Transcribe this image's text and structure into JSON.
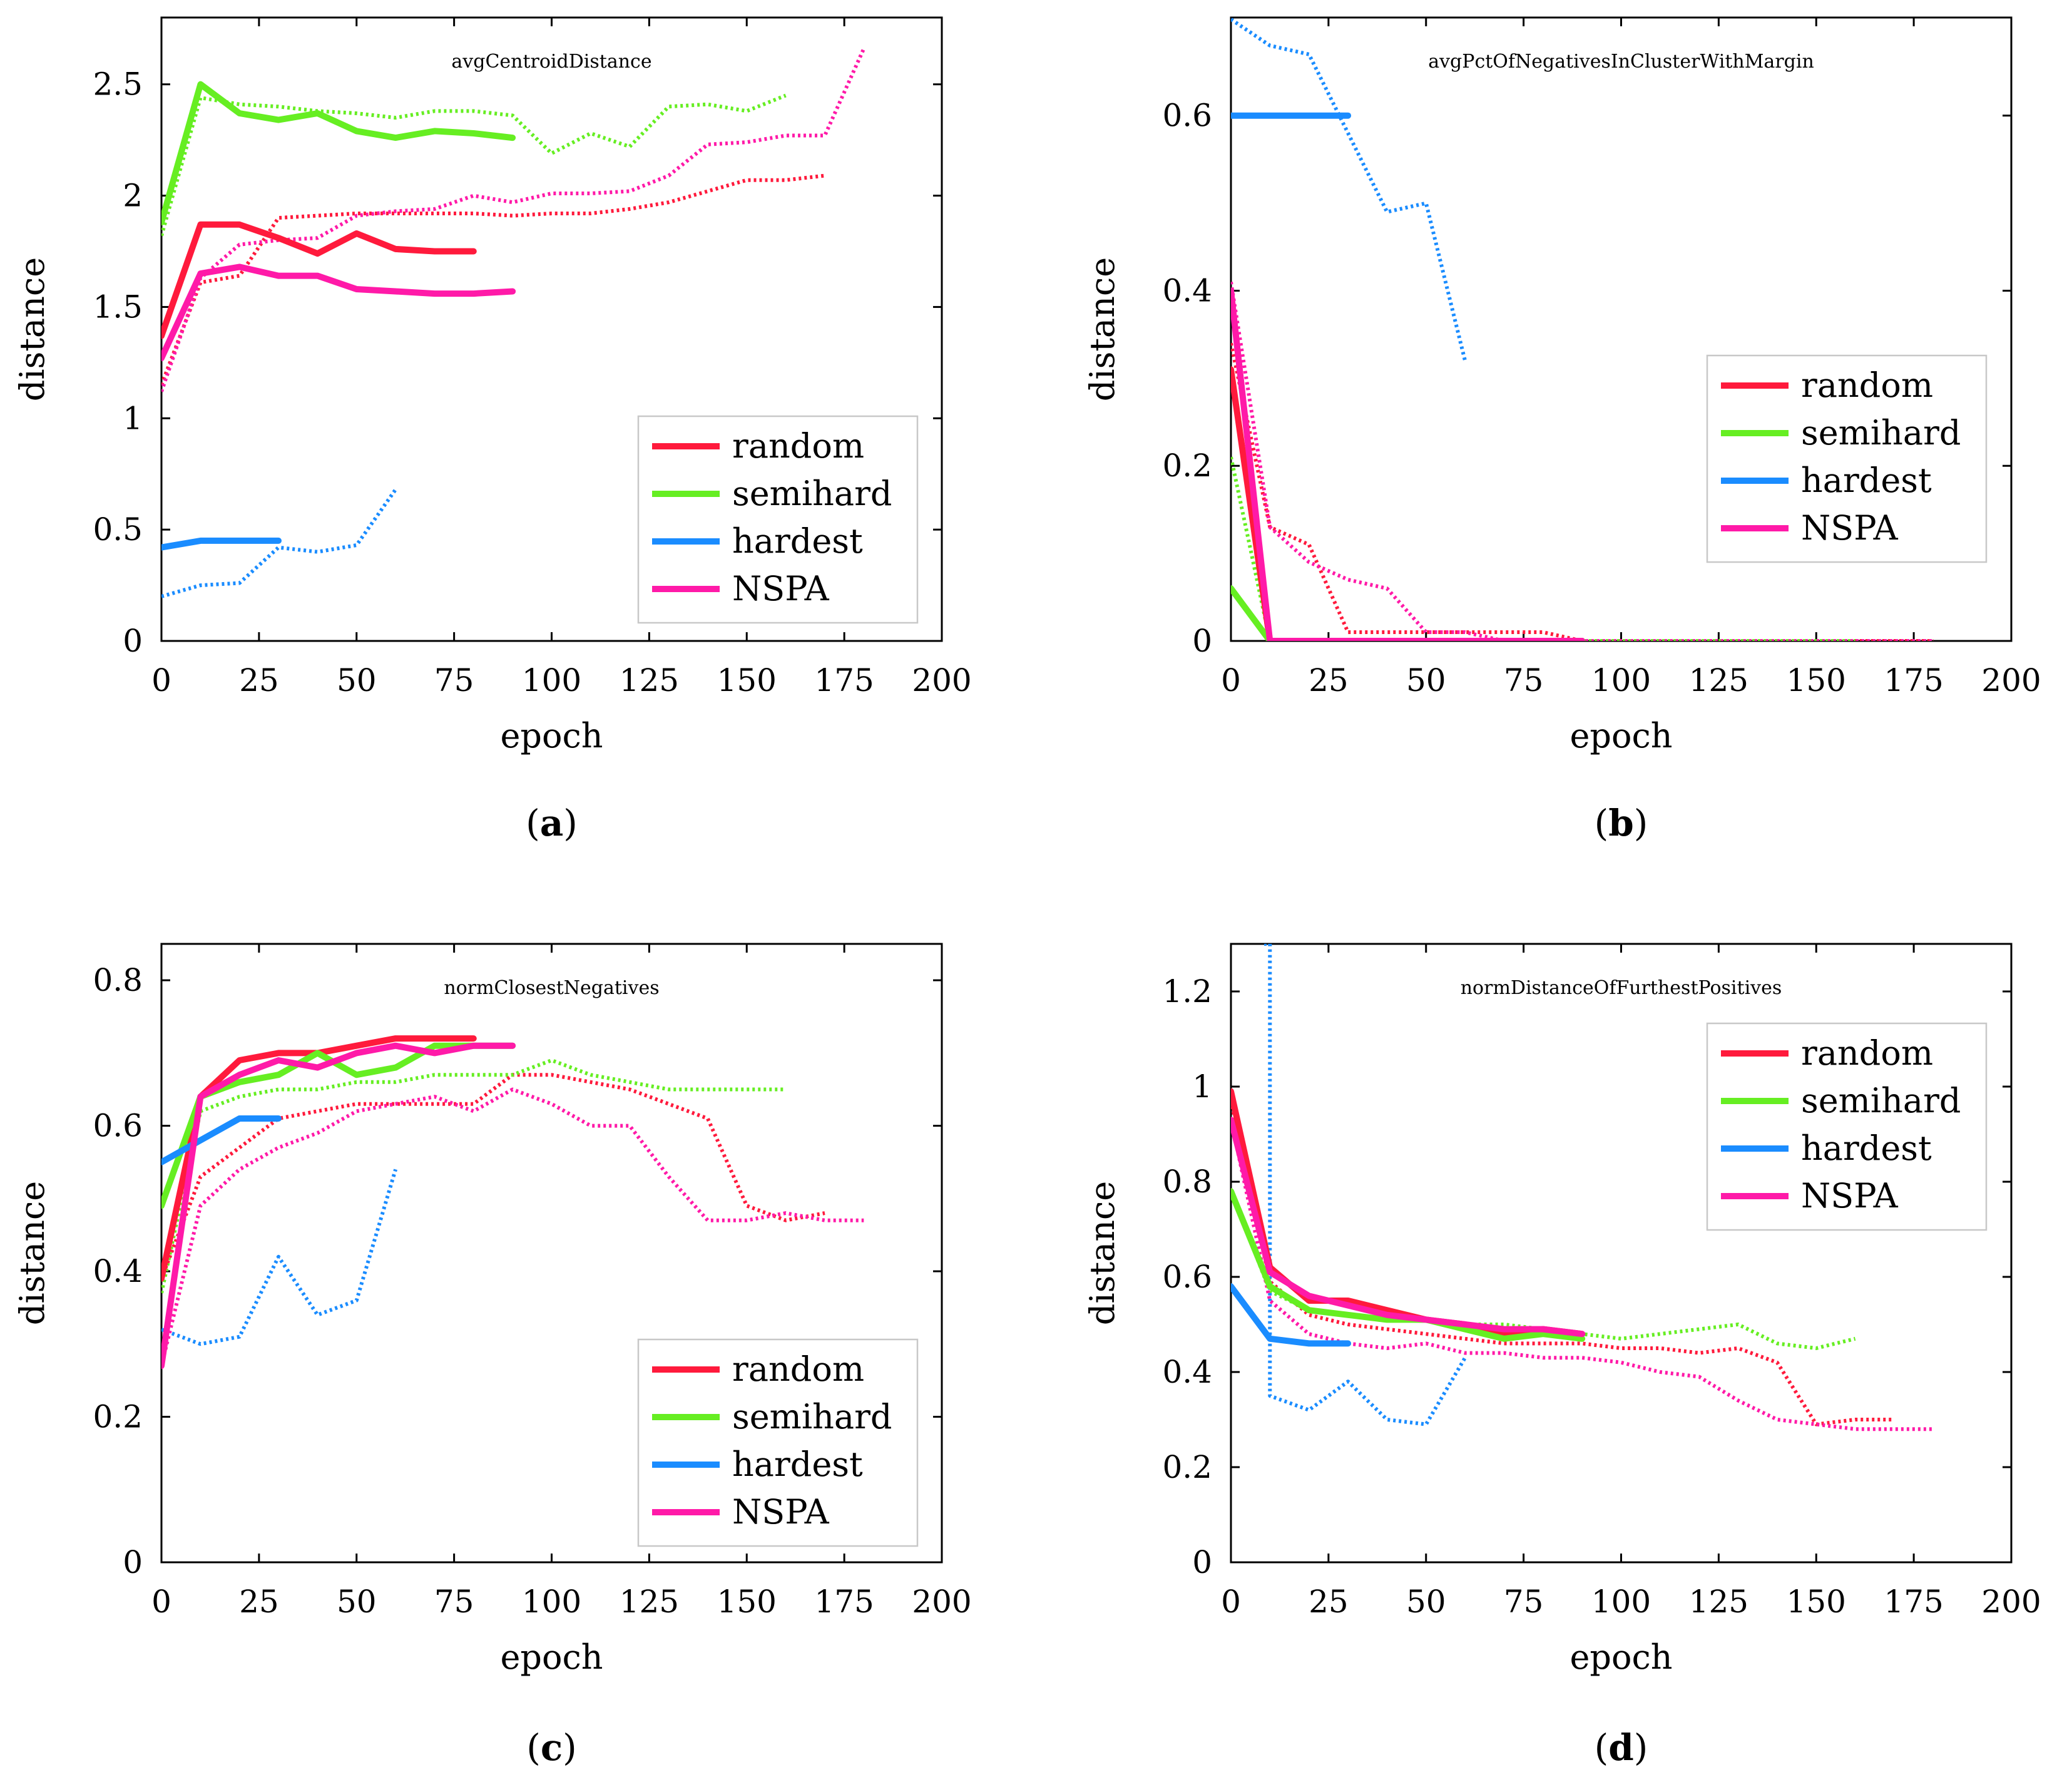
{
  "colors": {
    "random": "#ff1a3c",
    "semihard": "#66ee22",
    "hardest": "#1a8cff",
    "NSPA": "#ff1aa8"
  },
  "legend": [
    "random",
    "semihard",
    "hardest",
    "NSPA"
  ],
  "chart_data": [
    {
      "type": "line",
      "panel": "a",
      "caption": "(a)",
      "caption_letter": "a",
      "title": "avgCentroidDistance",
      "xlabel": "epoch",
      "ylabel": "distance",
      "xlim": [
        0,
        200
      ],
      "ylim": [
        0,
        2.8
      ],
      "xticks": [
        0,
        25,
        50,
        75,
        100,
        125,
        150,
        175,
        200
      ],
      "yticks": [
        0,
        0.5,
        1,
        1.5,
        2,
        2.5
      ],
      "ytick_labels": [
        "0",
        "0.5",
        "1",
        "1.5",
        "2",
        "2.5"
      ],
      "legend_position": "bottom-right",
      "series": [
        {
          "name": "random",
          "style": "solid",
          "x": [
            0,
            10,
            20,
            30,
            40,
            50,
            60,
            70,
            80
          ],
          "y": [
            1.37,
            1.87,
            1.87,
            1.81,
            1.74,
            1.83,
            1.76,
            1.75,
            1.75
          ]
        },
        {
          "name": "semihard",
          "style": "solid",
          "x": [
            0,
            10,
            20,
            30,
            40,
            50,
            60,
            70,
            80,
            90
          ],
          "y": [
            1.88,
            2.5,
            2.37,
            2.34,
            2.37,
            2.29,
            2.26,
            2.29,
            2.28,
            2.26
          ]
        },
        {
          "name": "hardest",
          "style": "solid",
          "x": [
            0,
            10,
            20,
            30
          ],
          "y": [
            0.42,
            0.45,
            0.45,
            0.45
          ]
        },
        {
          "name": "NSPA",
          "style": "solid",
          "x": [
            0,
            10,
            20,
            30,
            40,
            50,
            60,
            70,
            80,
            90
          ],
          "y": [
            1.27,
            1.65,
            1.68,
            1.64,
            1.64,
            1.58,
            1.57,
            1.56,
            1.56,
            1.57
          ]
        },
        {
          "name": "random",
          "style": "dotted",
          "x": [
            0,
            10,
            20,
            30,
            40,
            50,
            60,
            70,
            80,
            90,
            100,
            110,
            120,
            130,
            140,
            150,
            160,
            170
          ],
          "y": [
            1.15,
            1.61,
            1.64,
            1.9,
            1.91,
            1.92,
            1.92,
            1.92,
            1.92,
            1.91,
            1.92,
            1.92,
            1.94,
            1.97,
            2.02,
            2.07,
            2.07,
            2.09
          ]
        },
        {
          "name": "semihard",
          "style": "dotted",
          "x": [
            0,
            10,
            20,
            30,
            40,
            50,
            60,
            70,
            80,
            90,
            100,
            110,
            120,
            130,
            140,
            150,
            160
          ],
          "y": [
            1.82,
            2.44,
            2.41,
            2.4,
            2.38,
            2.37,
            2.35,
            2.38,
            2.38,
            2.36,
            2.19,
            2.28,
            2.22,
            2.4,
            2.41,
            2.38,
            2.45
          ]
        },
        {
          "name": "hardest",
          "style": "dotted",
          "x": [
            0,
            10,
            20,
            30,
            40,
            50,
            60
          ],
          "y": [
            0.2,
            0.25,
            0.26,
            0.42,
            0.4,
            0.43,
            0.68
          ]
        },
        {
          "name": "NSPA",
          "style": "dotted",
          "x": [
            0,
            10,
            20,
            30,
            40,
            50,
            60,
            70,
            80,
            90,
            100,
            110,
            120,
            130,
            140,
            150,
            160,
            170,
            180
          ],
          "y": [
            1.12,
            1.63,
            1.78,
            1.8,
            1.81,
            1.91,
            1.93,
            1.94,
            2.0,
            1.97,
            2.01,
            2.01,
            2.02,
            2.09,
            2.23,
            2.24,
            2.27,
            2.27,
            2.66
          ]
        }
      ]
    },
    {
      "type": "line",
      "panel": "b",
      "caption": "(b)",
      "caption_letter": "b",
      "title": "avgPctOfNegativesInClusterWithMargin",
      "xlabel": "epoch",
      "ylabel": "distance",
      "xlim": [
        0,
        200
      ],
      "ylim": [
        0,
        0.712
      ],
      "xticks": [
        0,
        25,
        50,
        75,
        100,
        125,
        150,
        175,
        200
      ],
      "yticks": [
        0,
        0.2,
        0.4,
        0.6
      ],
      "ytick_labels": [
        "0",
        "0.2",
        "0.4",
        "0.6"
      ],
      "legend_position": "top-right",
      "series": [
        {
          "name": "random",
          "style": "solid",
          "x": [
            0,
            10,
            20,
            30,
            40,
            50,
            60,
            70,
            80,
            90
          ],
          "y": [
            0.31,
            0,
            0,
            0,
            0,
            0,
            0,
            0,
            0,
            0
          ]
        },
        {
          "name": "semihard",
          "style": "solid",
          "x": [
            0,
            10,
            20,
            30,
            40,
            50,
            60,
            70,
            80,
            90
          ],
          "y": [
            0.06,
            0,
            0,
            0,
            0,
            0,
            0,
            0,
            0,
            0
          ]
        },
        {
          "name": "hardest",
          "style": "solid",
          "x": [
            0,
            10,
            20,
            30
          ],
          "y": [
            0.6,
            0.6,
            0.6,
            0.6
          ]
        },
        {
          "name": "NSPA",
          "style": "solid",
          "x": [
            0,
            10,
            20,
            30,
            40,
            50,
            60,
            70,
            80,
            90
          ],
          "y": [
            0.4,
            0,
            0,
            0,
            0,
            0,
            0,
            0,
            0,
            0
          ]
        },
        {
          "name": "random",
          "style": "dotted",
          "x": [
            0,
            10,
            20,
            30,
            40,
            50,
            60,
            70,
            80,
            90,
            100,
            120,
            140,
            160,
            180
          ],
          "y": [
            0.34,
            0.13,
            0.11,
            0.01,
            0.01,
            0.01,
            0.01,
            0.01,
            0.01,
            0,
            0,
            0,
            0,
            0,
            0
          ]
        },
        {
          "name": "semihard",
          "style": "dotted",
          "x": [
            0,
            10,
            20,
            40,
            60,
            80,
            100,
            120,
            140,
            160
          ],
          "y": [
            0.21,
            0,
            0,
            0,
            0,
            0,
            0,
            0,
            0,
            0
          ]
        },
        {
          "name": "hardest",
          "style": "dotted",
          "x": [
            0,
            10,
            20,
            30,
            40,
            50,
            60
          ],
          "y": [
            0.71,
            0.68,
            0.67,
            0.58,
            0.49,
            0.5,
            0.32
          ]
        },
        {
          "name": "NSPA",
          "style": "dotted",
          "x": [
            0,
            10,
            20,
            30,
            40,
            50,
            60,
            70,
            80,
            90,
            100,
            120,
            140,
            160,
            180
          ],
          "y": [
            0.41,
            0.13,
            0.09,
            0.07,
            0.06,
            0.01,
            0.01,
            0,
            0,
            0,
            0,
            0,
            0,
            0,
            0
          ]
        }
      ]
    },
    {
      "type": "line",
      "panel": "c",
      "caption": "(c)",
      "caption_letter": "c",
      "title": "normClosestNegatives",
      "xlabel": "epoch",
      "ylabel": "distance",
      "xlim": [
        0,
        200
      ],
      "ylim": [
        0,
        0.85
      ],
      "xticks": [
        0,
        25,
        50,
        75,
        100,
        125,
        150,
        175,
        200
      ],
      "yticks": [
        0,
        0.2,
        0.4,
        0.6,
        0.8
      ],
      "ytick_labels": [
        "0",
        "0.2",
        "0.4",
        "0.6",
        "0.8"
      ],
      "legend_position": "bottom-right",
      "series": [
        {
          "name": "random",
          "style": "solid",
          "x": [
            0,
            10,
            20,
            30,
            40,
            50,
            60,
            70,
            80
          ],
          "y": [
            0.39,
            0.64,
            0.69,
            0.7,
            0.7,
            0.71,
            0.72,
            0.72,
            0.72
          ]
        },
        {
          "name": "semihard",
          "style": "solid",
          "x": [
            0,
            10,
            20,
            30,
            40,
            50,
            60,
            70,
            80,
            90
          ],
          "y": [
            0.49,
            0.64,
            0.66,
            0.67,
            0.7,
            0.67,
            0.68,
            0.71,
            0.71,
            0.71
          ]
        },
        {
          "name": "hardest",
          "style": "solid",
          "x": [
            0,
            10,
            20,
            30
          ],
          "y": [
            0.55,
            0.58,
            0.61,
            0.61
          ]
        },
        {
          "name": "NSPA",
          "style": "solid",
          "x": [
            0,
            10,
            20,
            30,
            40,
            50,
            60,
            70,
            80,
            90
          ],
          "y": [
            0.27,
            0.64,
            0.67,
            0.69,
            0.68,
            0.7,
            0.71,
            0.7,
            0.71,
            0.71
          ]
        },
        {
          "name": "random",
          "style": "dotted",
          "x": [
            0,
            10,
            20,
            30,
            40,
            50,
            60,
            70,
            80,
            90,
            100,
            110,
            120,
            130,
            140,
            150,
            160,
            170
          ],
          "y": [
            0.39,
            0.53,
            0.57,
            0.61,
            0.62,
            0.63,
            0.63,
            0.63,
            0.63,
            0.67,
            0.67,
            0.66,
            0.65,
            0.63,
            0.61,
            0.49,
            0.47,
            0.48
          ]
        },
        {
          "name": "semihard",
          "style": "dotted",
          "x": [
            0,
            10,
            20,
            30,
            40,
            50,
            60,
            70,
            80,
            90,
            100,
            110,
            120,
            130,
            140,
            150,
            160
          ],
          "y": [
            0.37,
            0.62,
            0.64,
            0.65,
            0.65,
            0.66,
            0.66,
            0.67,
            0.67,
            0.67,
            0.69,
            0.67,
            0.66,
            0.65,
            0.65,
            0.65,
            0.65
          ]
        },
        {
          "name": "hardest",
          "style": "dotted",
          "x": [
            0,
            10,
            20,
            30,
            40,
            50,
            60
          ],
          "y": [
            0.32,
            0.3,
            0.31,
            0.42,
            0.34,
            0.36,
            0.54
          ]
        },
        {
          "name": "NSPA",
          "style": "dotted",
          "x": [
            0,
            10,
            20,
            30,
            40,
            50,
            60,
            70,
            80,
            90,
            100,
            110,
            120,
            130,
            140,
            150,
            160,
            170,
            180
          ],
          "y": [
            0.27,
            0.49,
            0.54,
            0.57,
            0.59,
            0.62,
            0.63,
            0.64,
            0.62,
            0.65,
            0.63,
            0.6,
            0.6,
            0.53,
            0.47,
            0.47,
            0.48,
            0.47,
            0.47
          ]
        }
      ]
    },
    {
      "type": "line",
      "panel": "d",
      "caption": "(d)",
      "caption_letter": "d",
      "title": "normDistanceOfFurthestPositives",
      "xlabel": "epoch",
      "ylabel": "distance",
      "xlim": [
        0,
        200
      ],
      "ylim": [
        0,
        1.3
      ],
      "xticks": [
        0,
        25,
        50,
        75,
        100,
        125,
        150,
        175,
        200
      ],
      "yticks": [
        0,
        0.2,
        0.4,
        0.6,
        0.8,
        1,
        1.2
      ],
      "ytick_labels": [
        "0",
        "0.2",
        "0.4",
        "0.6",
        "0.8",
        "1",
        "1.2"
      ],
      "legend_position": "top-right",
      "series": [
        {
          "name": "random",
          "style": "solid",
          "x": [
            0,
            10,
            20,
            30,
            40,
            50,
            60,
            70,
            80,
            90
          ],
          "y": [
            0.99,
            0.62,
            0.55,
            0.55,
            0.53,
            0.51,
            0.5,
            0.48,
            0.49,
            0.48
          ]
        },
        {
          "name": "semihard",
          "style": "solid",
          "x": [
            0,
            10,
            20,
            30,
            40,
            50,
            60,
            70,
            80,
            90
          ],
          "y": [
            0.78,
            0.58,
            0.53,
            0.52,
            0.51,
            0.51,
            0.49,
            0.47,
            0.48,
            0.47
          ]
        },
        {
          "name": "hardest",
          "style": "solid",
          "x": [
            0,
            10,
            20,
            30
          ],
          "y": [
            0.58,
            0.47,
            0.46,
            0.46
          ]
        },
        {
          "name": "NSPA",
          "style": "solid",
          "x": [
            0,
            10,
            20,
            30,
            40,
            50,
            60,
            70,
            80,
            90
          ],
          "y": [
            0.93,
            0.61,
            0.56,
            0.54,
            0.52,
            0.51,
            0.5,
            0.49,
            0.49,
            0.48
          ]
        },
        {
          "name": "random",
          "style": "dotted",
          "x": [
            0,
            10,
            20,
            30,
            40,
            50,
            60,
            70,
            80,
            90,
            100,
            110,
            120,
            130,
            140,
            150,
            160,
            170
          ],
          "y": [
            0.97,
            0.59,
            0.52,
            0.5,
            0.49,
            0.48,
            0.47,
            0.46,
            0.46,
            0.46,
            0.45,
            0.45,
            0.44,
            0.45,
            0.42,
            0.29,
            0.3,
            0.3
          ]
        },
        {
          "name": "semihard",
          "style": "dotted",
          "x": [
            0,
            10,
            20,
            30,
            40,
            50,
            60,
            70,
            80,
            90,
            100,
            110,
            120,
            130,
            140,
            150,
            160
          ],
          "y": [
            0.78,
            0.57,
            0.53,
            0.52,
            0.51,
            0.51,
            0.5,
            0.5,
            0.49,
            0.48,
            0.47,
            0.48,
            0.49,
            0.5,
            0.46,
            0.45,
            0.47
          ]
        },
        {
          "name": "hardest",
          "style": "dotted",
          "x": [
            8.5,
            10,
            10,
            20,
            30,
            40,
            50,
            60
          ],
          "y": [
            1.3,
            1.3,
            0.35,
            0.32,
            0.38,
            0.3,
            0.29,
            0.43
          ]
        },
        {
          "name": "NSPA",
          "style": "dotted",
          "x": [
            0,
            10,
            20,
            30,
            40,
            50,
            60,
            70,
            80,
            90,
            100,
            110,
            120,
            130,
            140,
            150,
            160,
            170,
            180
          ],
          "y": [
            0.93,
            0.55,
            0.48,
            0.46,
            0.45,
            0.46,
            0.44,
            0.44,
            0.43,
            0.43,
            0.42,
            0.4,
            0.39,
            0.34,
            0.3,
            0.29,
            0.28,
            0.28,
            0.28
          ]
        }
      ]
    }
  ]
}
